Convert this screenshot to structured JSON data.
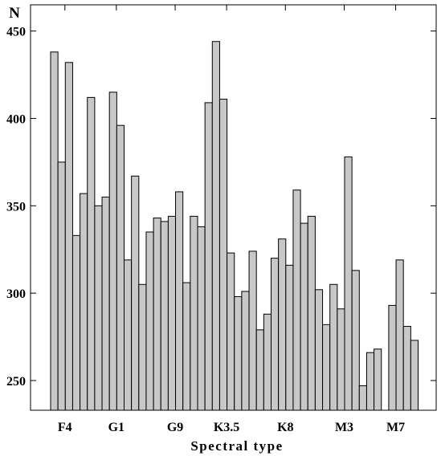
{
  "chart_data": {
    "type": "bar",
    "xlabel": "Spectral type",
    "ylabel": "N",
    "ylim": [
      233,
      465
    ],
    "yticks": [
      250,
      300,
      350,
      400,
      450
    ],
    "x_tick_labels": [
      "F4",
      "G1",
      "G9",
      "K3.5",
      "K8",
      "M3",
      "M7"
    ],
    "x_tick_bar_index": [
      2,
      9,
      17,
      24,
      32,
      40,
      47
    ],
    "values": [
      438,
      375,
      432,
      333,
      357,
      412,
      350,
      355,
      415,
      396,
      319,
      367,
      305,
      335,
      343,
      341,
      344,
      358,
      306,
      344,
      338,
      409,
      444,
      411,
      323,
      298,
      301,
      324,
      279,
      288,
      320,
      331,
      316,
      359,
      340,
      344,
      302,
      282,
      305,
      291,
      378,
      313,
      247,
      266,
      268,
      null,
      293,
      319,
      281,
      273
    ],
    "grid": false,
    "colors": {
      "bar_fill": "#c8c8c8",
      "bar_stroke": "#000000"
    }
  }
}
